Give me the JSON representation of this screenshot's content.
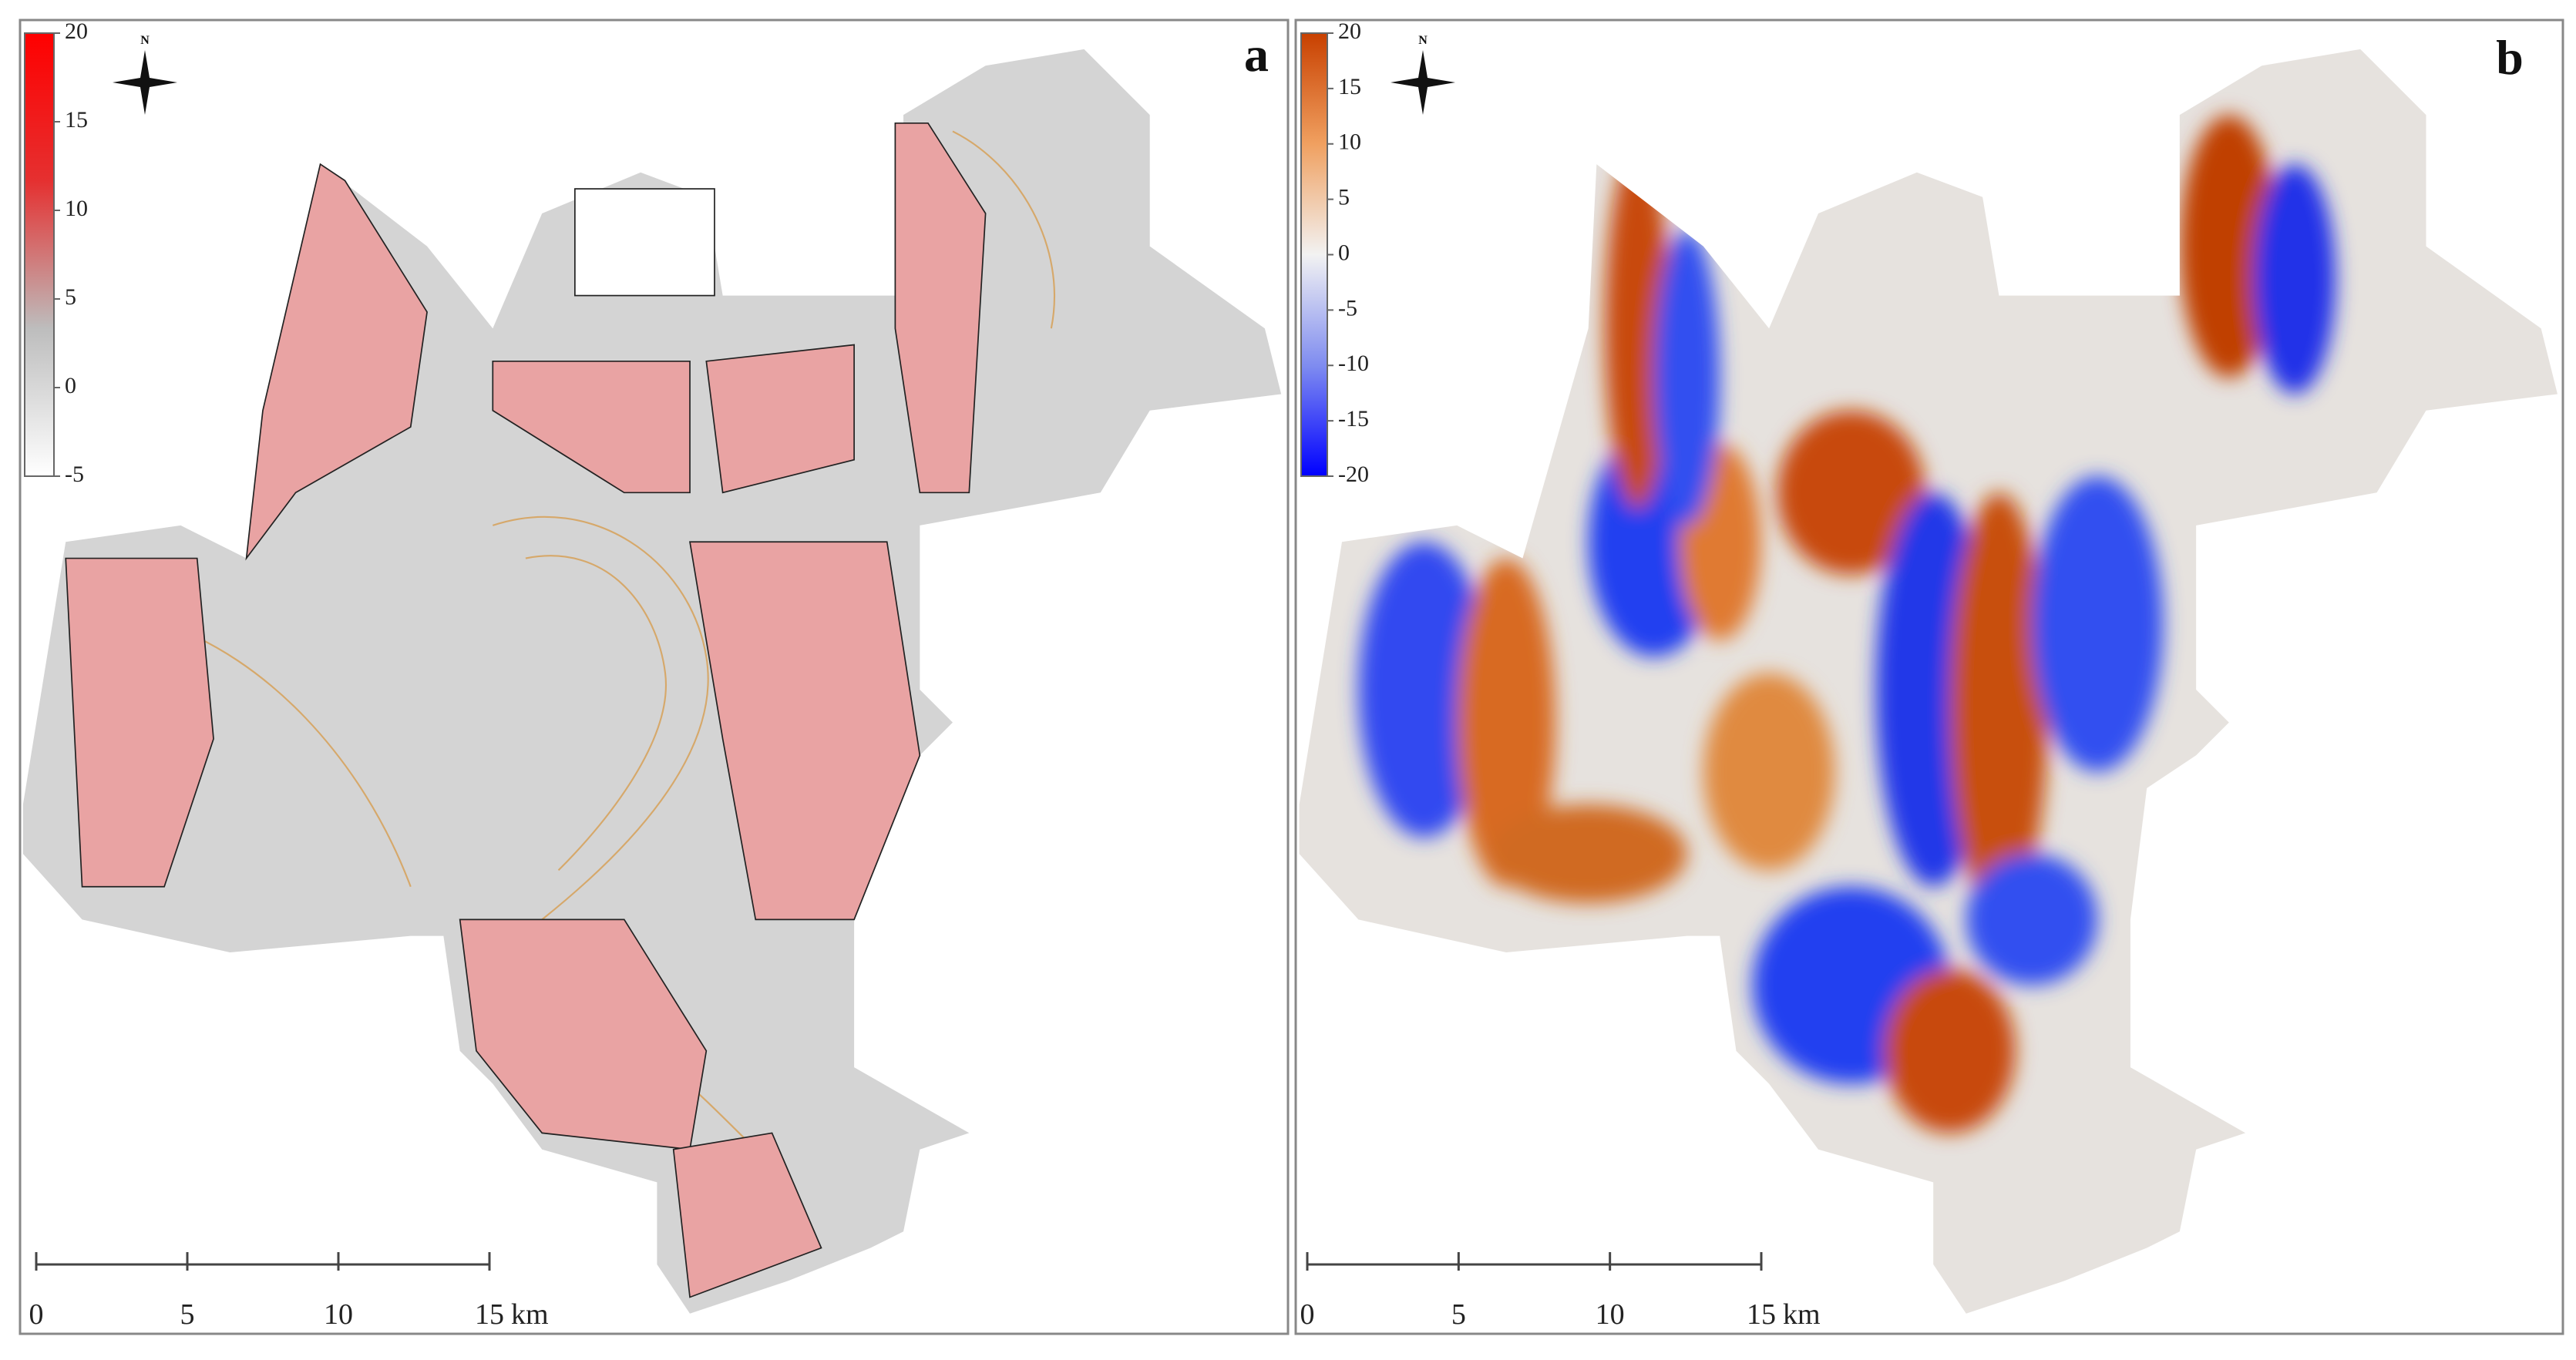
{
  "panels": [
    {
      "label": "a",
      "north": "N",
      "colorbar": {
        "range": [
          -5,
          20
        ],
        "ticks": [
          20,
          15,
          10,
          5,
          0,
          -5
        ],
        "colors": [
          "#ffffff",
          "#bdbdbd",
          "#e53030",
          "#ff0000"
        ]
      },
      "scale_bar": {
        "ticks": [
          0,
          5,
          10,
          15
        ],
        "unit": "km"
      }
    },
    {
      "label": "b",
      "north": "N",
      "colorbar": {
        "range": [
          -20,
          20
        ],
        "ticks": [
          20,
          15,
          10,
          5,
          0,
          -5,
          -10,
          -15,
          -20
        ],
        "colors": [
          "#0000ff",
          "#7f8cf0",
          "#f2f2f2",
          "#f0a060",
          "#c84000"
        ]
      },
      "scale_bar": {
        "ticks": [
          0,
          5,
          10,
          15
        ],
        "unit": "km"
      }
    }
  ]
}
